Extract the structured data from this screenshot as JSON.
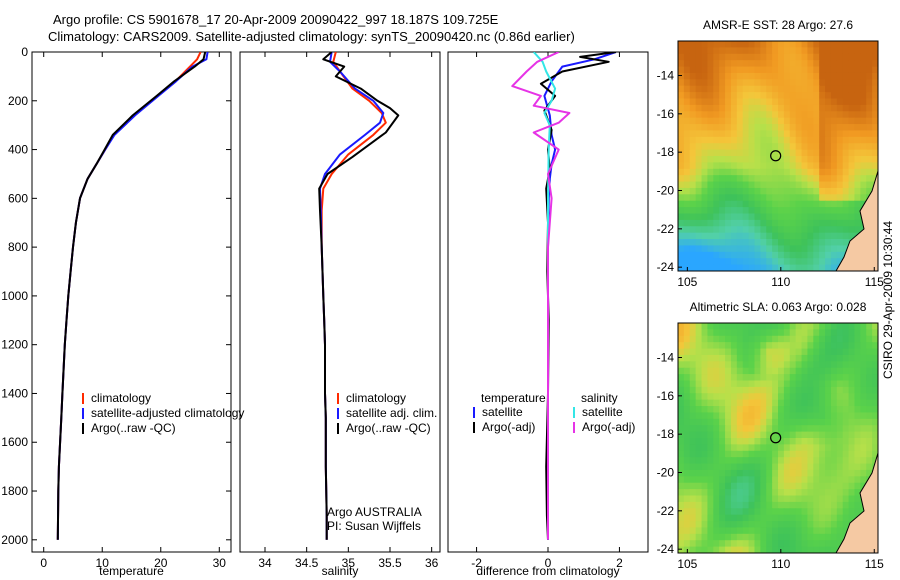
{
  "header": {
    "line1": "Argo profile: CS 5901678_17 20-Apr-2009 20090422_997 18.187S 109.725E",
    "line2": "Climatology: CARS2009. Satellite-adjusted climatology: synTS_20090420.nc (0.86d earlier)"
  },
  "side_text": "CSIRO 29-Apr-2009 10:30:44",
  "colors": {
    "climatology": "#ff2a00",
    "satellite": "#1a1aff",
    "argo": "#000000",
    "salinity_sat": "#33e6e6",
    "salinity_argo": "#e633e6",
    "land": "#f5c9a3"
  },
  "chart_data": [
    {
      "type": "line",
      "id": "temperature",
      "xlabel": "temperature",
      "ylabel": "",
      "xlim": [
        -2,
        32
      ],
      "ylim": [
        2050,
        0
      ],
      "xticks": [
        0,
        10,
        20,
        30
      ],
      "yticks": [
        0,
        200,
        400,
        600,
        800,
        1000,
        1200,
        1400,
        1600,
        1800,
        2000
      ],
      "legend": [
        "climatology",
        "satellite-adjusted climatology",
        "Argo(..raw -QC)"
      ],
      "series": [
        {
          "name": "climatology",
          "color": "#ff2a00",
          "x": [
            26.8,
            26.2,
            25.0,
            22.5,
            19.5,
            15.5,
            12.0,
            10.5,
            9.0,
            7.5,
            6.2,
            5.5,
            5.0,
            4.6,
            4.2,
            3.9,
            3.6,
            3.4,
            3.2,
            3.0,
            2.8,
            2.6,
            2.5,
            2.4
          ],
          "y": [
            0,
            30,
            60,
            120,
            180,
            260,
            340,
            400,
            460,
            520,
            600,
            700,
            800,
            900,
            1000,
            1100,
            1200,
            1300,
            1400,
            1500,
            1600,
            1700,
            1800,
            2000
          ]
        },
        {
          "name": "satellite-adjusted climatology",
          "color": "#1a1aff",
          "x": [
            28.0,
            27.8,
            25.4,
            22.6,
            19.6,
            15.6,
            12.1,
            10.5,
            9.0,
            7.5,
            6.2,
            5.5,
            5.0,
            4.6,
            4.2,
            3.9,
            3.6,
            3.4,
            3.2,
            3.0,
            2.8,
            2.6,
            2.5,
            2.4
          ],
          "y": [
            0,
            30,
            60,
            120,
            180,
            260,
            340,
            400,
            460,
            520,
            600,
            700,
            800,
            900,
            1000,
            1100,
            1200,
            1300,
            1400,
            1500,
            1600,
            1700,
            1800,
            2000
          ]
        },
        {
          "name": "Argo(..raw -QC)",
          "color": "#000000",
          "x": [
            27.6,
            27.3,
            25.8,
            22.3,
            19.3,
            15.2,
            11.8,
            10.4,
            9.0,
            7.5,
            6.2,
            5.5,
            5.0,
            4.6,
            4.2,
            3.9,
            3.6,
            3.4,
            3.2,
            3.0,
            2.8,
            2.6,
            2.5,
            2.4
          ],
          "y": [
            0,
            30,
            60,
            120,
            180,
            260,
            340,
            400,
            460,
            520,
            600,
            700,
            800,
            900,
            1000,
            1100,
            1200,
            1300,
            1400,
            1500,
            1600,
            1700,
            1800,
            2000
          ]
        }
      ]
    },
    {
      "type": "line",
      "id": "salinity",
      "xlabel": "salinity",
      "xlim": [
        33.7,
        36.1
      ],
      "ylim": [
        2050,
        0
      ],
      "xticks": [
        34,
        34.5,
        35,
        35.5,
        36
      ],
      "xticklabels": [
        "34",
        "34.5",
        "35",
        "35.5",
        "36"
      ],
      "legend": [
        "climatology",
        "satellite adj. clim.",
        "Argo(..raw -QC)"
      ],
      "annotation": [
        "Argo AUSTRALIA",
        "PI: Susan Wijffels"
      ],
      "series": [
        {
          "name": "climatology",
          "color": "#ff2a00",
          "x": [
            34.85,
            34.82,
            34.9,
            35.05,
            35.25,
            35.4,
            35.45,
            35.3,
            35.0,
            34.8,
            34.7,
            34.68,
            34.68,
            34.69,
            34.7,
            34.71,
            34.72,
            34.72,
            34.73,
            34.73,
            34.73,
            34.74,
            34.74
          ],
          "y": [
            0,
            40,
            80,
            150,
            200,
            250,
            290,
            340,
            420,
            500,
            560,
            650,
            800,
            900,
            1000,
            1100,
            1200,
            1400,
            1500,
            1600,
            1700,
            1900,
            2000
          ]
        },
        {
          "name": "satellite adj. clim.",
          "color": "#1a1aff",
          "x": [
            34.8,
            34.78,
            34.9,
            35.08,
            35.3,
            35.42,
            35.38,
            35.2,
            34.9,
            34.72,
            34.66,
            34.67,
            34.68,
            34.69,
            34.7,
            34.71,
            34.72,
            34.72,
            34.73,
            34.73,
            34.73,
            34.74,
            34.74
          ],
          "y": [
            0,
            40,
            80,
            150,
            200,
            250,
            290,
            340,
            420,
            500,
            560,
            650,
            800,
            900,
            1000,
            1100,
            1200,
            1400,
            1500,
            1600,
            1700,
            1900,
            2000
          ]
        },
        {
          "name": "Argo(..raw -QC)",
          "color": "#000000",
          "x": [
            34.8,
            34.7,
            34.95,
            34.85,
            35.15,
            35.35,
            35.5,
            35.6,
            35.45,
            35.05,
            34.75,
            34.65,
            34.66,
            34.68,
            34.69,
            34.7,
            34.71,
            34.72,
            34.72,
            34.73,
            34.73,
            34.73,
            34.74,
            34.74
          ],
          "y": [
            0,
            30,
            60,
            100,
            150,
            200,
            230,
            260,
            330,
            430,
            500,
            560,
            650,
            800,
            900,
            1000,
            1100,
            1200,
            1400,
            1500,
            1600,
            1700,
            1900,
            2000
          ]
        }
      ]
    },
    {
      "type": "line",
      "id": "difference",
      "xlabel": "difference from climatology",
      "xlim": [
        -2.8,
        2.8
      ],
      "ylim": [
        2050,
        0
      ],
      "xticks": [
        -2,
        0,
        2
      ],
      "legend_headers": [
        "temperature",
        "salinity"
      ],
      "legend": [
        "satellite",
        "Argo(-adj)",
        "satellite",
        "Argo(-adj)"
      ],
      "series": [
        {
          "name": "temperature satellite",
          "color": "#1a1aff",
          "x": [
            1.9,
            1.3,
            0.4,
            0.1,
            -0.1,
            0.05,
            0.1,
            0.2,
            0.1,
            0.05,
            0.02,
            0.0,
            0.0,
            0.0,
            0.0
          ],
          "y": [
            0,
            30,
            60,
            120,
            180,
            260,
            340,
            400,
            460,
            520,
            600,
            800,
            1200,
            1600,
            2000
          ]
        },
        {
          "name": "temperature Argo(-adj)",
          "color": "#000000",
          "x": [
            1.9,
            0.9,
            1.7,
            0.4,
            -0.2,
            0.2,
            -0.1,
            0.1,
            0.0,
            0.05,
            -0.05,
            0.0,
            -0.02,
            0.02,
            0.0,
            -0.05,
            -0.03,
            0.0
          ],
          "y": [
            0,
            20,
            40,
            80,
            130,
            180,
            240,
            320,
            400,
            480,
            560,
            700,
            900,
            1100,
            1400,
            1700,
            1900,
            2000
          ]
        },
        {
          "name": "salinity satellite",
          "color": "#33e6e6",
          "x": [
            -0.4,
            -0.15,
            -0.05,
            0.2,
            0.1,
            -0.1,
            0.05,
            0.02,
            0.0,
            0.0,
            0.0,
            0.0
          ],
          "y": [
            0,
            40,
            80,
            150,
            200,
            250,
            300,
            400,
            600,
            1000,
            1500,
            2000
          ]
        },
        {
          "name": "salinity Argo(-adj)",
          "color": "#e633e6",
          "x": [
            0.3,
            -0.3,
            -0.6,
            -1.0,
            -0.2,
            -0.4,
            0.6,
            0.3,
            -0.4,
            0.3,
            0.0,
            0.1,
            0.0,
            0.0,
            0.0
          ],
          "y": [
            0,
            40,
            80,
            140,
            180,
            220,
            250,
            290,
            330,
            400,
            500,
            600,
            800,
            1200,
            2000
          ]
        }
      ]
    },
    {
      "type": "heatmap",
      "id": "sst-map",
      "title": "AMSR-E SST: 28 Argo: 27.6",
      "xlim": [
        104.5,
        115.2
      ],
      "ylim": [
        -24.2,
        -12.2
      ],
      "xticks": [
        105,
        110,
        115
      ],
      "yticks": [
        -14,
        -16,
        -18,
        -20,
        -22,
        -24
      ],
      "marker": {
        "lon": 109.725,
        "lat": -18.187
      }
    },
    {
      "type": "heatmap",
      "id": "sla-map",
      "title": "Altimetric SLA: 0.063 Argo: 0.028",
      "xlim": [
        104.5,
        115.2
      ],
      "ylim": [
        -24.2,
        -12.2
      ],
      "xticks": [
        105,
        110,
        115
      ],
      "yticks": [
        -14,
        -16,
        -18,
        -20,
        -22,
        -24
      ],
      "marker": {
        "lon": 109.725,
        "lat": -18.187
      }
    }
  ]
}
